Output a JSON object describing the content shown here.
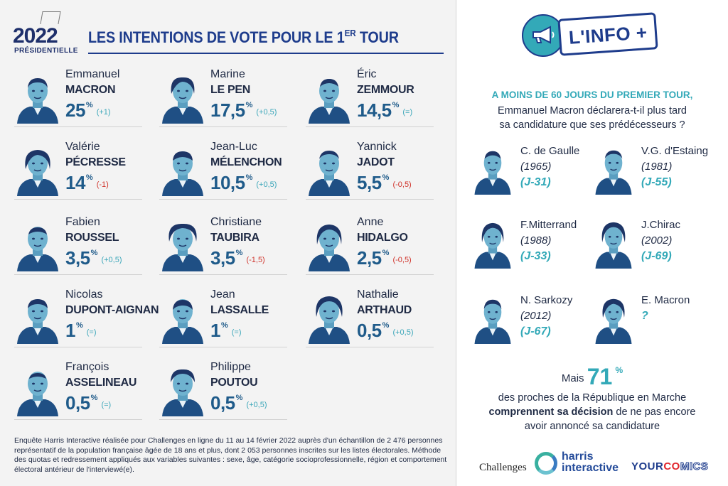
{
  "header": {
    "logo_year": "2022",
    "logo_subtitle": "PRÉSIDENTIELLE",
    "title_main": "LES INTENTIONS DE VOTE POUR LE 1",
    "title_sup": "ER",
    "title_end": " TOUR"
  },
  "candidates": [
    {
      "first": "Emmanuel",
      "last": "MACRON",
      "score": "25",
      "delta": "(+1)",
      "trend": "up"
    },
    {
      "first": "Marine",
      "last": "LE PEN",
      "score": "17,5",
      "delta": "(+0,5)",
      "trend": "up"
    },
    {
      "first": "Éric",
      "last": "ZEMMOUR",
      "score": "14,5",
      "delta": "(=)",
      "trend": "eq"
    },
    {
      "first": "Valérie",
      "last": "PÉCRESSE",
      "score": "14",
      "delta": "(-1)",
      "trend": "down"
    },
    {
      "first": "Jean-Luc",
      "last": "MÉLENCHON",
      "score": "10,5",
      "delta": "(+0,5)",
      "trend": "up"
    },
    {
      "first": "Yannick",
      "last": "JADOT",
      "score": "5,5",
      "delta": "(-0,5)",
      "trend": "down"
    },
    {
      "first": "Fabien",
      "last": "ROUSSEL",
      "score": "3,5",
      "delta": "(+0,5)",
      "trend": "up"
    },
    {
      "first": "Christiane",
      "last": "TAUBIRA",
      "score": "3,5",
      "delta": "(-1,5)",
      "trend": "down"
    },
    {
      "first": "Anne",
      "last": "HIDALGO",
      "score": "2,5",
      "delta": "(-0,5)",
      "trend": "down"
    },
    {
      "first": "Nicolas",
      "last": "DUPONT-AIGNAN",
      "score": "1",
      "delta": "(=)",
      "trend": "eq"
    },
    {
      "first": "Jean",
      "last": "LASSALLE",
      "score": "1",
      "delta": "(=)",
      "trend": "eq"
    },
    {
      "first": "Nathalie",
      "last": "ARTHAUD",
      "score": "0,5",
      "delta": "(+0,5)",
      "trend": "up"
    },
    {
      "first": "François",
      "last": "ASSELINEAU",
      "score": "0,5",
      "delta": "(=)",
      "trend": "eq"
    },
    {
      "first": "Philippe",
      "last": "POUTOU",
      "score": "0,5",
      "delta": "(+0,5)",
      "trend": "up"
    }
  ],
  "percent_sign": "%",
  "footnote": "Enquête Harris Interactive réalisée pour Challenges en ligne du 11 au 14 février 2022 auprès d'un échantillon de 2 476 personnes représentatif de la population française âgée de 18 ans et plus, dont 2 053 personnes inscrites sur les listes électorales. Méthode des quotas et redressement appliqués aux variables suivantes : sexe, âge, catégorie socioprofessionnelle, région et comportement électoral antérieur de l'interviewé(e).",
  "info": {
    "badge": "L'INFO +",
    "question_highlight": "A MOINS DE 60 JOURS DU PREMIER TOUR,",
    "question_line1": "Emmanuel Macron déclarera-t-il plus tard",
    "question_line2": "sa candidature que ses prédécesseurs ?",
    "presidents": [
      {
        "name": "C. de Gaulle",
        "year": "(1965)",
        "days": "(J-31)"
      },
      {
        "name": "V.G. d'Estaing",
        "year": "(1981)",
        "days": "(J-55)"
      },
      {
        "name": "F.Mitterrand",
        "year": "(1988)",
        "days": "(J-33)"
      },
      {
        "name": "J.Chirac",
        "year": "(2002)",
        "days": "(J-69)"
      },
      {
        "name": "N. Sarkozy",
        "year": "(2012)",
        "days": "(J-67)"
      },
      {
        "name": "E. Macron",
        "year": "",
        "days": "?"
      }
    ],
    "mais": "Mais",
    "stat": "71",
    "stat_sign": "%",
    "stat_line1": "des proches de la République en Marche",
    "stat_bold": "comprennent sa décision",
    "stat_line2_rest": " de ne pas encore",
    "stat_line3": "avoir annoncé sa candidature"
  },
  "logos": {
    "challenges": "Challenges",
    "harris_1": "harris",
    "harris_2": "interactive",
    "your_a": "YOUR",
    "your_b": "CO",
    "your_c": "MICS"
  },
  "colors": {
    "navy": "#1e3c8c",
    "teal": "#33a9b8",
    "red": "#d0342c",
    "brand_red": "#e1262d"
  }
}
